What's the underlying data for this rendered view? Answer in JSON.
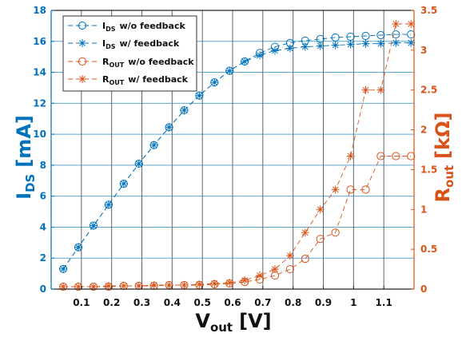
{
  "chart_data": {
    "type": "line",
    "xlabel": {
      "main": "V",
      "sub": "out",
      "unit": "[V]"
    },
    "ylabel_left": {
      "main": "I",
      "sub": "DS",
      "unit": "[mA]"
    },
    "ylabel_right": {
      "main": "R",
      "sub": "out",
      "unit": "[kΩ]"
    },
    "xlim": [
      0.0,
      1.2
    ],
    "ylim_left": [
      0,
      18
    ],
    "ylim_right": [
      0,
      3.5
    ],
    "x_ticks": [
      0.1,
      0.2,
      0.3,
      0.4,
      0.5,
      0.6,
      0.7,
      0.8,
      0.9,
      1.0,
      1.1
    ],
    "x_tick_labels": [
      "0.1",
      "0.2",
      "0.3",
      "0.4",
      "0.5",
      "0.6",
      "0.7",
      "0.8",
      "0.9",
      "1",
      "1.1"
    ],
    "y_left_ticks": [
      0,
      2,
      4,
      6,
      8,
      10,
      12,
      14,
      16,
      18
    ],
    "y_left_tick_labels": [
      "0",
      "2",
      "4",
      "6",
      "8",
      "10",
      "12",
      "14",
      "16",
      "18"
    ],
    "y_right_ticks": [
      0,
      0.5,
      1,
      1.5,
      2,
      2.5,
      3,
      3.5
    ],
    "y_right_tick_labels": [
      "0",
      "0.5",
      "1",
      "1.5",
      "2",
      "2.5",
      "3",
      "3.5"
    ],
    "grid": true,
    "legend_position": "top-left",
    "x": [
      0.04,
      0.09,
      0.14,
      0.19,
      0.24,
      0.29,
      0.34,
      0.39,
      0.44,
      0.49,
      0.54,
      0.59,
      0.64,
      0.69,
      0.74,
      0.79,
      0.84,
      0.89,
      0.94,
      0.99,
      1.04,
      1.09,
      1.14,
      1.19
    ],
    "series": [
      {
        "name_main": "I",
        "name_sub": "DS",
        "name_rest": "w/o feedback",
        "axis": "left",
        "marker": "circle",
        "color": "#0072BD",
        "values": [
          1.3,
          2.7,
          4.1,
          5.45,
          6.8,
          8.1,
          9.3,
          10.45,
          11.55,
          12.5,
          13.35,
          14.1,
          14.7,
          15.25,
          15.65,
          15.9,
          16.05,
          16.15,
          16.25,
          16.3,
          16.35,
          16.4,
          16.45,
          16.45
        ]
      },
      {
        "name_main": "I",
        "name_sub": "DS",
        "name_rest": "w/ feedback",
        "axis": "left",
        "marker": "asterisk",
        "color": "#0072BD",
        "values": [
          1.3,
          2.7,
          4.1,
          5.45,
          6.8,
          8.1,
          9.3,
          10.45,
          11.55,
          12.5,
          13.35,
          14.1,
          14.7,
          15.1,
          15.4,
          15.55,
          15.65,
          15.7,
          15.75,
          15.8,
          15.85,
          15.85,
          15.9,
          15.9
        ]
      },
      {
        "name_main": "R",
        "name_sub": "OUT",
        "name_rest": "w/o feedback",
        "axis": "right",
        "marker": "circle",
        "color": "#D95319",
        "values": [
          0.03,
          0.03,
          0.03,
          0.03,
          0.04,
          0.04,
          0.04,
          0.05,
          0.05,
          0.05,
          0.06,
          0.07,
          0.09,
          0.12,
          0.17,
          0.25,
          0.38,
          0.63,
          0.71,
          1.25,
          1.25,
          1.67,
          1.67,
          1.67
        ]
      },
      {
        "name_main": "R",
        "name_sub": "OUT",
        "name_rest": "w/ feedback",
        "axis": "right",
        "marker": "asterisk",
        "color": "#D95319",
        "values": [
          0.03,
          0.03,
          0.03,
          0.04,
          0.04,
          0.04,
          0.05,
          0.05,
          0.05,
          0.06,
          0.07,
          0.08,
          0.11,
          0.17,
          0.25,
          0.42,
          0.71,
          1.0,
          1.25,
          1.67,
          2.5,
          2.5,
          3.33,
          3.33
        ]
      }
    ]
  },
  "colors": {
    "left_axis": "#0072BD",
    "right_axis": "#D95319",
    "grid_horizontal": "#5aa7d6",
    "grid_vertical": "#5a6470",
    "legend_border": "#333333"
  }
}
